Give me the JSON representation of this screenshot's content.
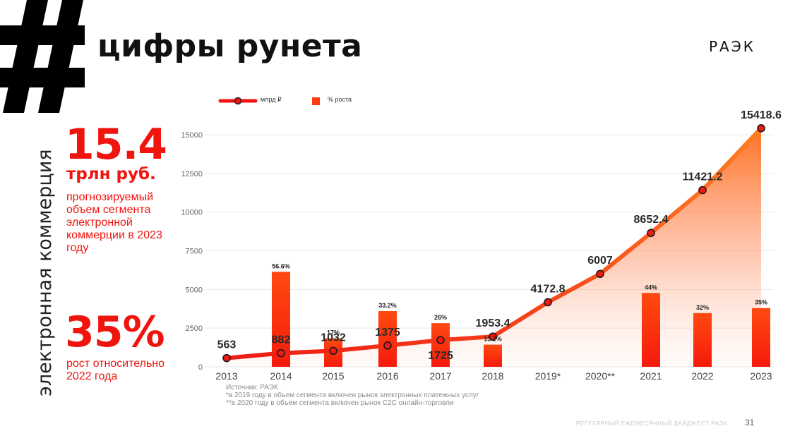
{
  "header": {
    "title": "цифры рунета",
    "brand": "РАЭК"
  },
  "side_label": "электронная коммерция",
  "kpis": [
    {
      "value": "15.4",
      "unit": "трлн руб.",
      "description": "прогнозируемый объем сегмента электронной коммерции в 2023 году"
    },
    {
      "value": "35%",
      "description": "рост относительно 2022 года"
    }
  ],
  "legend": {
    "line": "млрд ₽",
    "bar": "% роста"
  },
  "colors": {
    "accent": "#f0140f",
    "orange": "#ff7a1f",
    "bar": "#fe3a0e"
  },
  "chart_data": {
    "type": "bar",
    "categories": [
      "2013",
      "2014",
      "2015",
      "2016",
      "2017",
      "2018",
      "2019*",
      "2020**",
      "2021",
      "2022",
      "2023"
    ],
    "ylim": [
      0,
      16000
    ],
    "yticks": [
      0,
      2500,
      5000,
      7500,
      10000,
      12500,
      15000
    ],
    "series": [
      {
        "name": "млрд ₽",
        "type": "line",
        "values": [
          563,
          882,
          1032,
          1375,
          1725,
          1953.4,
          4172.8,
          6007,
          8652.4,
          11421.2,
          15418.6
        ],
        "labels": [
          "563",
          "882",
          "1032",
          "1375",
          "1725",
          "1953.4",
          "4172.8",
          "6007",
          "8652.4",
          "11421.2",
          "15418.6"
        ]
      },
      {
        "name": "% роста",
        "type": "bar",
        "values": [
          null,
          56.6,
          17,
          33.2,
          26,
          13.2,
          null,
          null,
          44,
          32,
          35
        ],
        "labels": [
          "",
          "56.6%",
          "17%",
          "33.2%",
          "26%",
          "13.2%",
          "",
          "",
          "44%",
          "32%",
          "35%"
        ]
      }
    ]
  },
  "notes": [
    "Источник: РАЭК",
    "*в 2019 году в объем сегмента включен рынок электронных платежных услуг",
    "**в 2020 году в объем сегмента включен рынок С2С онлайн-торговли"
  ],
  "footer": {
    "text": "РЕГУЛЯРНЫЙ ЕЖЕМЕСЯЧНЫЙ ДАЙДЖЕСТ РАЭК",
    "page": "31"
  }
}
